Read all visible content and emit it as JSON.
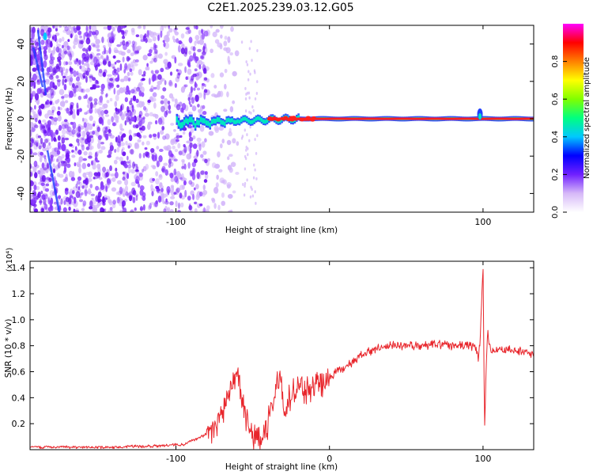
{
  "title": "C2E1.2025.239.03.12.G05",
  "chart_data": [
    {
      "type": "heatmap",
      "name": "spectrogram",
      "xlabel": "Height of straight line (km)",
      "ylabel": "Frequency (Hz)",
      "xlim": [
        -195,
        133
      ],
      "ylim": [
        -50,
        50
      ],
      "xticks": [
        -100,
        0,
        100
      ],
      "xtick_labels": [
        "-100",
        "",
        "100"
      ],
      "yticks": [
        -40,
        -20,
        0,
        20,
        40
      ],
      "ytick_labels": [
        "-40",
        "-20",
        "0",
        "20",
        "40"
      ],
      "colorbar": {
        "label": "Normalized spectral amplitude",
        "range": [
          0,
          1
        ],
        "ticks": [
          0.0,
          0.2,
          0.4,
          0.6,
          0.8
        ],
        "tick_labels": [
          "0.0",
          "0.2",
          "0.4",
          "0.6",
          "0.8"
        ],
        "colormap": [
          "#ffffff",
          "#d6b8f8",
          "#7020ff",
          "#0000ff",
          "#00c8ff",
          "#00ff80",
          "#80ff00",
          "#ffff00",
          "#ff8000",
          "#ff0000",
          "#ff00ff"
        ]
      },
      "noise_region_x": [
        -195,
        -80
      ],
      "signal_x": [
        -100,
        133
      ],
      "signal_frequency": 0,
      "spikes_x": [
        -185,
        98
      ],
      "colors": {
        "noise": "#8b3cff",
        "noise_light": "#d2b4fa",
        "signal_core": "#ff2020",
        "signal_halo": "#00e8c0",
        "signal_edge": "#2040ff"
      }
    },
    {
      "type": "line",
      "name": "snr",
      "xlabel": "Height of straight line (km)",
      "ylabel": "SNR (10 * v/v)",
      "scale_label": "(x10⁴)",
      "xlim": [
        -195,
        133
      ],
      "ylim": [
        0,
        1.45
      ],
      "xticks": [
        -100,
        0,
        100
      ],
      "xtick_labels": [
        "-100",
        "0",
        "100"
      ],
      "yticks": [
        0.2,
        0.4,
        0.6,
        0.8,
        1.0,
        1.2,
        1.4
      ],
      "ytick_labels": [
        "0.2",
        "0.4",
        "0.6",
        "0.8",
        "1.0",
        "1.2",
        "1.4"
      ],
      "line_color": "#e8262c",
      "series": [
        {
          "name": "SNR",
          "x": [
            -195,
            -170,
            -140,
            -110,
            -95,
            -90,
            -85,
            -80,
            -75,
            -72,
            -65,
            -62,
            -60,
            -58,
            -55,
            -52,
            -48,
            -45,
            -40,
            -35,
            -32,
            -30,
            -25,
            -20,
            -15,
            -10,
            -5,
            0,
            5,
            10,
            20,
            30,
            40,
            50,
            60,
            70,
            80,
            90,
            95,
            97,
            98,
            99,
            100,
            101,
            102,
            103,
            105,
            110,
            120,
            133
          ],
          "y": [
            0.02,
            0.02,
            0.02,
            0.03,
            0.04,
            0.07,
            0.09,
            0.12,
            0.16,
            0.22,
            0.45,
            0.52,
            0.6,
            0.45,
            0.3,
            0.15,
            0.06,
            0.08,
            0.2,
            0.45,
            0.55,
            0.3,
            0.42,
            0.5,
            0.45,
            0.48,
            0.52,
            0.55,
            0.6,
            0.63,
            0.72,
            0.78,
            0.8,
            0.8,
            0.8,
            0.81,
            0.8,
            0.8,
            0.79,
            0.7,
            0.82,
            1.1,
            1.45,
            0.12,
            0.6,
            0.9,
            0.76,
            0.76,
            0.77,
            0.73
          ]
        }
      ],
      "spike_labels": []
    }
  ]
}
